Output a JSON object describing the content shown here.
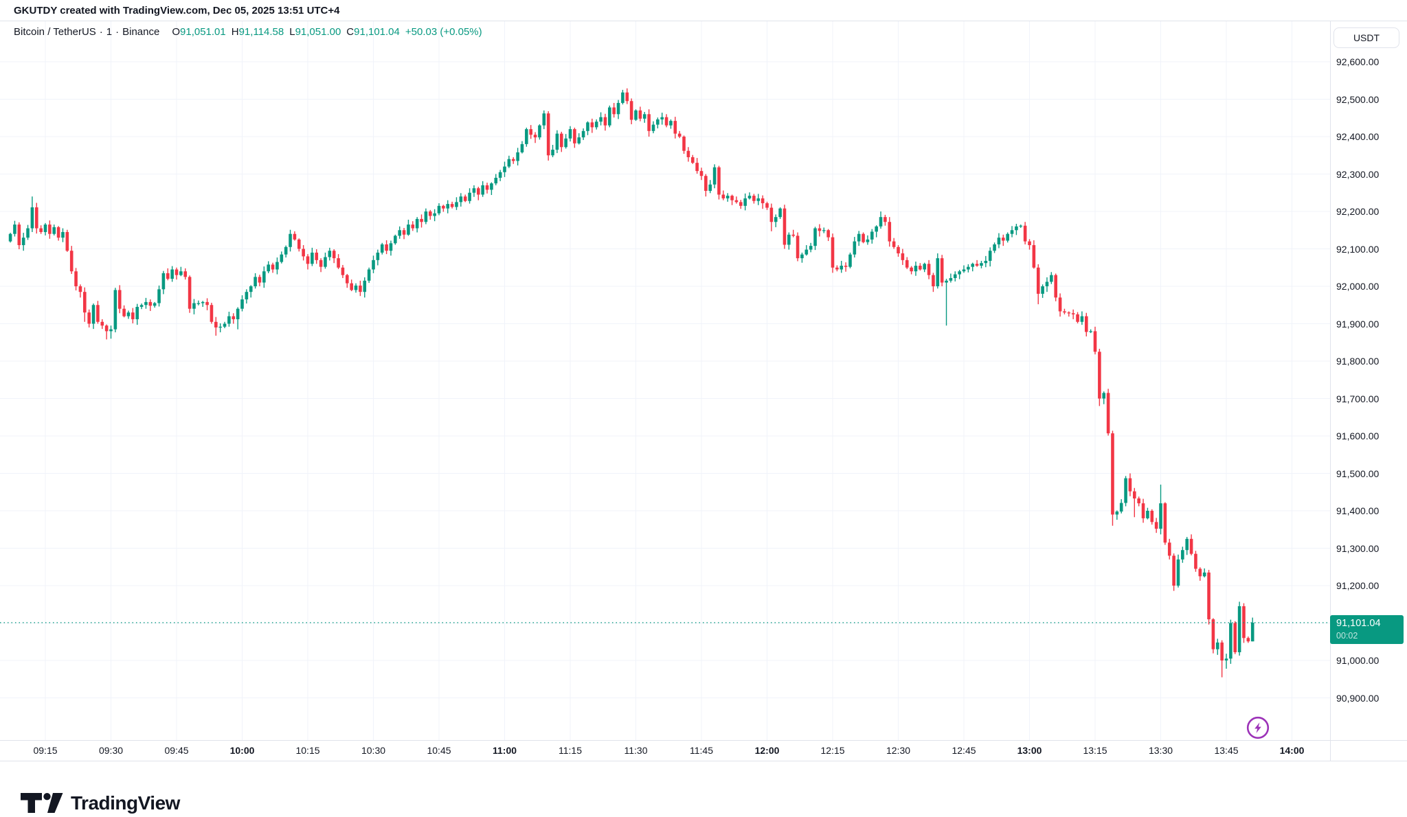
{
  "attribution": "GKUTDY created with TradingView.com, Dec 05, 2025 13:51 UTC+4",
  "legend": {
    "symbol": "Bitcoin / TetherUS",
    "separator": "·",
    "interval": "1",
    "exchange": "Binance",
    "ohlc": [
      {
        "label": "O",
        "value": "91,051.01"
      },
      {
        "label": "H",
        "value": "91,114.58"
      },
      {
        "label": "L",
        "value": "91,051.00"
      },
      {
        "label": "C",
        "value": "91,101.04"
      }
    ],
    "change": "+50.03 (+0.05%)"
  },
  "currency_button": "USDT",
  "price_badge": {
    "price": "91,101.04",
    "countdown": "00:02"
  },
  "logo": {
    "text": "TradingView"
  },
  "colors": {
    "up": "#089981",
    "down": "#f23645",
    "grid": "#f0f3fa",
    "frame": "#e0e3eb",
    "text": "#131722",
    "badge_bg": "#089981",
    "price_line": "#089981",
    "lightning": "#9c32b8"
  },
  "price_axis_labels": [
    {
      "text": "92,600.00",
      "value": 92600
    },
    {
      "text": "92,500.00",
      "value": 92500
    },
    {
      "text": "92,400.00",
      "value": 92400
    },
    {
      "text": "92,300.00",
      "value": 92300
    },
    {
      "text": "92,200.00",
      "value": 92200
    },
    {
      "text": "92,100.00",
      "value": 92100
    },
    {
      "text": "92,000.00",
      "value": 92000
    },
    {
      "text": "91,900.00",
      "value": 91900
    },
    {
      "text": "91,800.00",
      "value": 91800
    },
    {
      "text": "91,700.00",
      "value": 91700
    },
    {
      "text": "91,600.00",
      "value": 91600
    },
    {
      "text": "91,500.00",
      "value": 91500
    },
    {
      "text": "91,400.00",
      "value": 91400
    },
    {
      "text": "91,300.00",
      "value": 91300
    },
    {
      "text": "91,200.00",
      "value": 91200
    },
    {
      "text": "91,100.00",
      "value": 91100,
      "hidden": true
    },
    {
      "text": "91,000.00",
      "value": 91000
    },
    {
      "text": "90,900.00",
      "value": 90900
    }
  ],
  "time_axis_labels": [
    {
      "text": "09:15",
      "bold": false
    },
    {
      "text": "09:30",
      "bold": false
    },
    {
      "text": "09:45",
      "bold": false
    },
    {
      "text": "10:00",
      "bold": true
    },
    {
      "text": "10:15",
      "bold": false
    },
    {
      "text": "10:30",
      "bold": false
    },
    {
      "text": "10:45",
      "bold": false
    },
    {
      "text": "11:00",
      "bold": true
    },
    {
      "text": "11:15",
      "bold": false
    },
    {
      "text": "11:30",
      "bold": false
    },
    {
      "text": "11:45",
      "bold": false
    },
    {
      "text": "12:00",
      "bold": true
    },
    {
      "text": "12:15",
      "bold": false
    },
    {
      "text": "12:30",
      "bold": false
    },
    {
      "text": "12:45",
      "bold": false
    },
    {
      "text": "13:00",
      "bold": true
    },
    {
      "text": "13:15",
      "bold": false
    },
    {
      "text": "13:30",
      "bold": false
    },
    {
      "text": "13:45",
      "bold": false
    },
    {
      "text": "14:00",
      "bold": true
    }
  ],
  "chart_data": {
    "type": "candlestick",
    "title": "Bitcoin / TetherUS, 1 minute, Binance",
    "interval_minutes": 1,
    "start_time": "09:07",
    "end_time": "13:51",
    "current_price": 91101.04,
    "last_candle": {
      "open": 91051.01,
      "high": 91114.58,
      "low": 91051.0,
      "close": 91101.04
    },
    "y_axis": {
      "min": 90900,
      "max": 92600,
      "step": 100
    },
    "x_axis": {
      "first_label": "09:15",
      "last_label": "14:00",
      "step_minutes": 15
    },
    "first_open": 92120,
    "closes": [
      92140,
      92165,
      92110,
      92130,
      92155,
      92211,
      92155,
      92145,
      92165,
      92140,
      92158,
      92130,
      92145,
      92095,
      92040,
      92000,
      91985,
      91930,
      91900,
      91950,
      91905,
      91895,
      91880,
      91885,
      91990,
      91940,
      91920,
      91930,
      91912,
      91945,
      91950,
      91958,
      91948,
      91955,
      91992,
      92035,
      92020,
      92045,
      92030,
      92040,
      92025,
      91940,
      91955,
      91955,
      91958,
      91950,
      91905,
      91890,
      91892,
      91900,
      91920,
      91912,
      91940,
      91965,
      91985,
      92000,
      92025,
      92010,
      92040,
      92058,
      92045,
      92065,
      92085,
      92105,
      92140,
      92125,
      92100,
      92080,
      92060,
      92090,
      92070,
      92052,
      92078,
      92095,
      92075,
      92050,
      92030,
      92008,
      91990,
      92002,
      91985,
      92015,
      92045,
      92070,
      92090,
      92112,
      92095,
      92115,
      92135,
      92150,
      92138,
      92165,
      92155,
      92180,
      92172,
      92200,
      92188,
      92195,
      92215,
      92208,
      92220,
      92212,
      92225,
      92240,
      92228,
      92250,
      92262,
      92245,
      92270,
      92258,
      92275,
      92290,
      92305,
      92320,
      92340,
      92335,
      92358,
      92380,
      92420,
      92405,
      92398,
      92430,
      92462,
      92350,
      92365,
      92408,
      92372,
      92395,
      92420,
      92382,
      92398,
      92415,
      92438,
      92425,
      92440,
      92452,
      92430,
      92478,
      92460,
      92490,
      92518,
      92495,
      92445,
      92470,
      92448,
      92460,
      92415,
      92432,
      92446,
      92452,
      92430,
      92442,
      92408,
      92400,
      92362,
      92345,
      92330,
      92308,
      92295,
      92255,
      92272,
      92318,
      92245,
      92235,
      92242,
      92230,
      92225,
      92215,
      92235,
      92242,
      92228,
      92235,
      92222,
      92210,
      92172,
      92185,
      92208,
      92111,
      92138,
      92135,
      92075,
      92085,
      92098,
      92108,
      92155,
      92148,
      92150,
      92131,
      92050,
      92045,
      92055,
      92052,
      92085,
      92120,
      92140,
      92118,
      92125,
      92146,
      92160,
      92185,
      92172,
      92120,
      92105,
      92088,
      92070,
      92050,
      92040,
      92055,
      92045,
      92060,
      92030,
      92000,
      92075,
      92010,
      92015,
      92022,
      92032,
      92040,
      92045,
      92052,
      92060,
      92055,
      92062,
      92068,
      92095,
      92112,
      92130,
      92122,
      92140,
      92150,
      92160,
      92162,
      92120,
      92110,
      92050,
      91980,
      92000,
      92012,
      92030,
      91970,
      91933,
      91930,
      91928,
      91925,
      91905,
      91920,
      91878,
      91880,
      91825,
      91700,
      91715,
      91607,
      91390,
      91398,
      91421,
      91487,
      91452,
      91433,
      91420,
      91380,
      91400,
      91370,
      91352,
      91420,
      91315,
      91280,
      91200,
      91270,
      91295,
      91325,
      91285,
      91245,
      91225,
      91235,
      91110,
      91030,
      91048,
      91000,
      91005,
      91100,
      91022,
      91145,
      91060,
      91051.01,
      91101.04
    ],
    "wick_overrides": {
      "5": {
        "high": 92240
      },
      "17": {
        "low": 91905
      },
      "22": {
        "low": 91858
      },
      "23": {
        "low": 91860
      },
      "47": {
        "low": 91868
      },
      "52": {
        "low": 91885
      },
      "122": {
        "high": 92470
      },
      "140": {
        "high": 92525
      },
      "162": {
        "low": 92232
      },
      "174": {
        "low": 92147
      },
      "177": {
        "low": 92100
      },
      "188": {
        "low": 92036
      },
      "199": {
        "high": 92200
      },
      "214": {
        "low": 91895
      },
      "235": {
        "low": 91952
      },
      "249": {
        "low": 91680
      },
      "252": {
        "low": 91360
      },
      "257": {
        "low": 91383
      },
      "263": {
        "high": 91470
      },
      "274": {
        "low": 91096
      },
      "277": {
        "low": 90955
      },
      "278": {
        "low": 90978
      },
      "284": {
        "high": 91114.58,
        "low": 91051.0
      }
    }
  }
}
